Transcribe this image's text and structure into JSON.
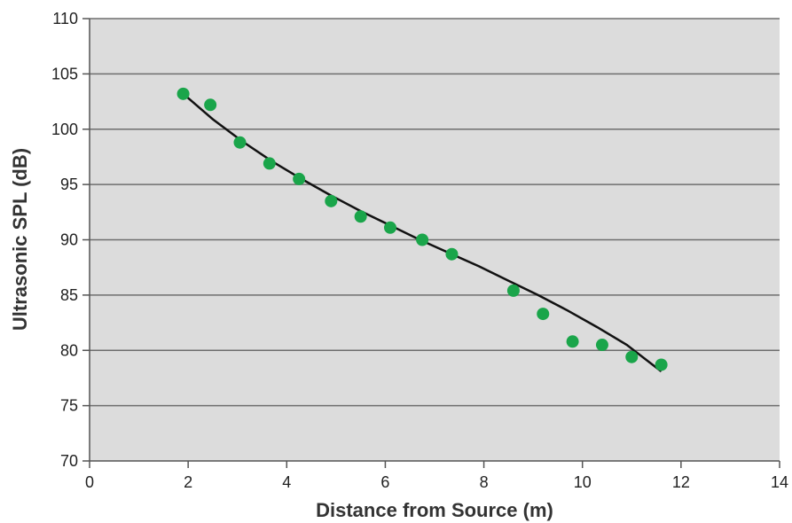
{
  "chart_data": {
    "type": "scatter",
    "title": "",
    "xlabel": "Distance from Source (m)",
    "ylabel": "Ultrasonic SPL (dB)",
    "xlim": [
      0,
      14
    ],
    "ylim": [
      70,
      110
    ],
    "x_ticks": [
      0,
      2,
      4,
      6,
      8,
      10,
      12,
      14
    ],
    "y_ticks": [
      70,
      75,
      80,
      85,
      90,
      95,
      100,
      105,
      110
    ],
    "x_tick_labels": [
      "0",
      "2",
      "4",
      "6",
      "8",
      "10",
      "12",
      "14"
    ],
    "y_tick_labels": [
      "70",
      "75",
      "80",
      "85",
      "90",
      "95",
      "100",
      "105",
      "110"
    ],
    "grid": "horizontal",
    "plot_background": "#dcdcdc",
    "point_color": "#1aa54a",
    "line_color": "#111111",
    "series": [
      {
        "type": "scatter",
        "x": [
          1.9,
          2.45,
          3.05,
          3.65,
          4.25,
          4.9,
          5.5,
          6.1,
          6.75,
          7.35,
          8.6,
          9.2,
          9.8,
          10.4,
          11.0,
          11.6
        ],
        "y": [
          103.2,
          102.2,
          98.8,
          96.9,
          95.5,
          93.5,
          92.1,
          91.1,
          90.0,
          88.7,
          85.4,
          83.3,
          80.8,
          80.5,
          79.4,
          78.7
        ]
      },
      {
        "type": "line",
        "x": [
          1.9,
          2.5,
          3.1,
          3.7,
          4.3,
          4.9,
          5.5,
          6.1,
          6.7,
          7.3,
          7.9,
          8.5,
          9.1,
          9.7,
          10.3,
          10.9,
          11.6
        ],
        "y": [
          103.2,
          100.9,
          98.9,
          97.1,
          95.5,
          94.0,
          92.6,
          91.3,
          90.0,
          88.8,
          87.6,
          86.3,
          85.0,
          83.6,
          82.1,
          80.5,
          78.1
        ]
      }
    ]
  }
}
